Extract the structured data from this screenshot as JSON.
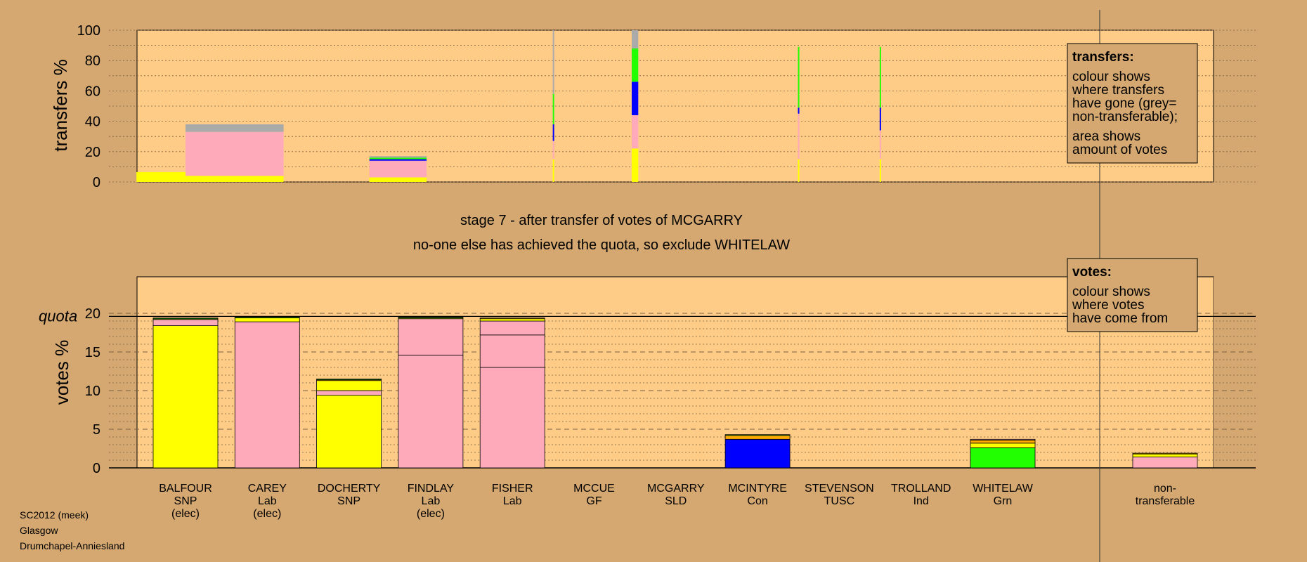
{
  "caption": {
    "line1": "stage 7 - after transfer of votes of MCGARRY",
    "line2": "no-one else has achieved the quota, so exclude WHITELAW"
  },
  "footer": [
    "SC2012 (meek)",
    "Glasgow",
    "Drumchapel-Anniesland"
  ],
  "legends": {
    "transfers": {
      "title": "transfers:",
      "lines1": [
        "colour shows",
        "where transfers",
        "have gone (grey=",
        "non-transferable);"
      ],
      "lines2": [
        "area shows",
        "amount of votes"
      ]
    },
    "votes": {
      "title": "votes:",
      "lines": [
        "colour shows",
        "where votes",
        "have come from"
      ]
    }
  },
  "colors": {
    "background": "#d4a870",
    "plot_bg": "#ffcc88",
    "SNP": "#ffff00",
    "Lab": "#ffaabb",
    "Con": "#0000ff",
    "Grn": "#22ff00",
    "SLD": "#ffaa00",
    "nontransferable": "#aaaaaa"
  },
  "chart_data": [
    {
      "type": "bar",
      "title": "transfers",
      "ylabel": "transfers %",
      "ylim": [
        0,
        100
      ],
      "yticks": [
        0,
        20,
        40,
        60,
        80,
        100
      ],
      "note": "stacked transfer bars; width proportional to amount of votes",
      "bars": [
        {
          "x": 0.8,
          "w": 0.8,
          "segs": [
            [
              "SNP",
              6.5
            ]
          ]
        },
        {
          "x": 1.6,
          "w": 1.2,
          "segs": [
            [
              "SNP",
              4
            ],
            [
              "Lab",
              29
            ],
            [
              "nontransferable",
              5
            ]
          ]
        },
        {
          "x": 3.6,
          "w": 0.7,
          "segs": [
            [
              "SNP",
              3
            ],
            [
              "Lab",
              11
            ],
            [
              "Con",
              1
            ],
            [
              "Grn",
              1
            ],
            [
              "nontransferable",
              1
            ]
          ]
        },
        {
          "x": 5.5,
          "w": 0.012,
          "segs": [
            [
              "SNP",
              15
            ],
            [
              "Lab",
              12
            ],
            [
              "Con",
              11
            ],
            [
              "Grn",
              20
            ],
            [
              "nontransferable",
              42
            ]
          ]
        },
        {
          "x": 6.5,
          "w": 0.08,
          "segs": [
            [
              "SNP",
              22
            ],
            [
              "Lab",
              22
            ],
            [
              "Con",
              22
            ],
            [
              "Grn",
              22
            ],
            [
              "nontransferable",
              12
            ]
          ]
        },
        {
          "x": 8.5,
          "w": 0.012,
          "segs": [
            [
              "SNP",
              15
            ],
            [
              "Lab",
              30
            ],
            [
              "Con",
              4
            ],
            [
              "Grn",
              40
            ]
          ]
        },
        {
          "x": 9.5,
          "w": 0.012,
          "segs": [
            [
              "SNP",
              15
            ],
            [
              "Lab",
              19
            ],
            [
              "Con",
              15
            ],
            [
              "Grn",
              40
            ]
          ]
        }
      ]
    },
    {
      "type": "bar",
      "title": "votes",
      "ylabel": "votes %",
      "quota_label": "quota",
      "quota": 19.6,
      "ylim": [
        0,
        20
      ],
      "yticks": [
        0,
        5,
        10,
        15,
        20
      ],
      "categories": [
        {
          "name": "BALFOUR",
          "party": "SNP",
          "elec": "(elec)"
        },
        {
          "name": "CAREY",
          "party": "Lab",
          "elec": "(elec)"
        },
        {
          "name": "DOCHERTY",
          "party": "SNP",
          "elec": ""
        },
        {
          "name": "FINDLAY",
          "party": "Lab",
          "elec": "(elec)"
        },
        {
          "name": "FISHER",
          "party": "Lab",
          "elec": ""
        },
        {
          "name": "MCCUE",
          "party": "GF",
          "elec": ""
        },
        {
          "name": "MCGARRY",
          "party": "SLD",
          "elec": ""
        },
        {
          "name": "MCINTYRE",
          "party": "Con",
          "elec": ""
        },
        {
          "name": "STEVENSON",
          "party": "TUSC",
          "elec": ""
        },
        {
          "name": "TROLLAND",
          "party": "Ind",
          "elec": ""
        },
        {
          "name": "WHITELAW",
          "party": "Grn",
          "elec": ""
        }
      ],
      "nontransferable_label": [
        "non-",
        "transferable"
      ],
      "stacks": [
        [
          [
            "SNP",
            18.4
          ],
          [
            "Lab",
            0.8
          ],
          [
            "SNP",
            0.1
          ],
          [
            "Grn",
            0.1
          ]
        ],
        [
          [
            "Lab",
            18.9
          ],
          [
            "SNP",
            0.5
          ],
          [
            "Grn",
            0.1
          ]
        ],
        [
          [
            "SNP",
            9.4
          ],
          [
            "Lab",
            0.6
          ],
          [
            "SNP",
            1.3
          ],
          [
            "SLD",
            0.1
          ],
          [
            "Grn",
            0.1
          ]
        ],
        [
          [
            "Lab",
            14.6
          ],
          [
            "Lab",
            4.7
          ],
          [
            "SNP",
            0.1
          ],
          [
            "Grn",
            0.1
          ]
        ],
        [
          [
            "Lab",
            13.0
          ],
          [
            "Lab",
            4.2
          ],
          [
            "Lab",
            1.8
          ],
          [
            "SNP",
            0.3
          ],
          [
            "SLD",
            0.1
          ]
        ],
        [],
        [],
        [
          [
            "Con",
            3.7
          ],
          [
            "SLD",
            0.5
          ],
          [
            "Grn",
            0.1
          ]
        ],
        [],
        [],
        [
          [
            "Grn",
            2.6
          ],
          [
            "SNP",
            0.6
          ],
          [
            "SLD",
            0.4
          ],
          [
            "Lab",
            0.1
          ]
        ]
      ],
      "nontransferable_stack": [
        [
          "Lab",
          1.4
        ],
        [
          "SNP",
          0.4
        ],
        [
          "SLD",
          0.1
        ]
      ]
    }
  ]
}
